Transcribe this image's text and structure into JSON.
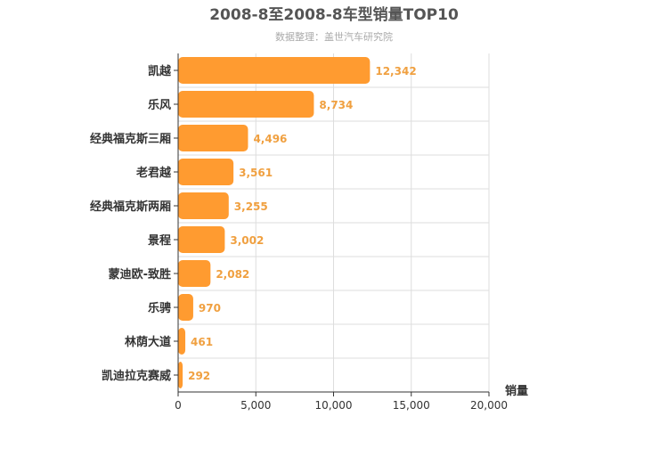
{
  "chart_data": {
    "type": "bar",
    "orientation": "horizontal",
    "title": "2008-8至2008-8车型销量TOP10",
    "subtitle": "数据整理：盖世汽车研究院",
    "xlabel": "销量",
    "ylabel": "",
    "xlim": [
      0,
      20000
    ],
    "x_ticks": [
      "0",
      "5,000",
      "10,000",
      "15,000",
      "20,000"
    ],
    "grid": true,
    "legend": "none",
    "bar_color": "#ff9b30",
    "label_color": "#f0a040",
    "categories": [
      "凯越",
      "乐风",
      "经典福克斯三厢",
      "老君越",
      "经典福克斯两厢",
      "景程",
      "蒙迪欧-致胜",
      "乐骋",
      "林荫大道",
      "凯迪拉克赛威"
    ],
    "values": [
      12342,
      8734,
      4496,
      3561,
      3255,
      3002,
      2082,
      970,
      461,
      292
    ],
    "value_labels": [
      "12,342",
      "8,734",
      "4,496",
      "3,561",
      "3,255",
      "3,002",
      "2,082",
      "970",
      "461",
      "292"
    ]
  }
}
